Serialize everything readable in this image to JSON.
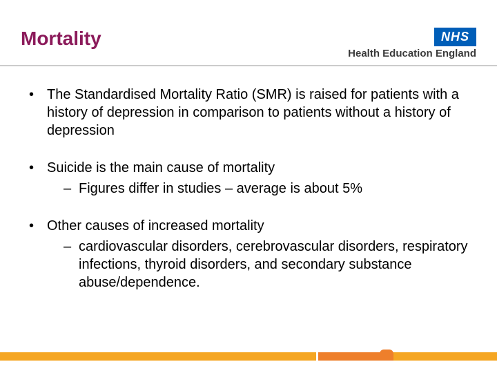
{
  "title": "Mortality",
  "logo": {
    "nhs": "NHS",
    "hee": "Health Education England"
  },
  "bullets": [
    {
      "text": "The Standardised Mortality Ratio (SMR) is raised for patients with a history of depression in comparison to patients without a history of depression",
      "subs": []
    },
    {
      "text": "Suicide is the main cause of mortality",
      "subs": [
        "Figures differ in studies – average is about 5%"
      ]
    },
    {
      "text": "Other causes of increased mortality",
      "subs": [
        "cardiovascular disorders, cerebrovascular disorders, respiratory infections, thyroid disorders, and secondary substance abuse/dependence."
      ]
    }
  ],
  "colors": {
    "title": "#8b1a5a",
    "nhs_bg": "#005eb8",
    "bar_light": "#f5a623",
    "bar_dark": "#ee7f2b",
    "underline": "#cccccc"
  }
}
